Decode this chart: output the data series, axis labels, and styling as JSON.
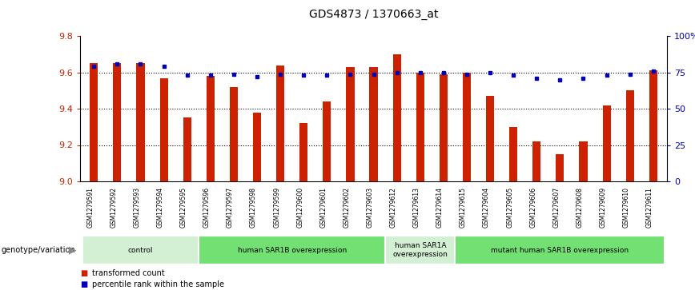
{
  "title": "GDS4873 / 1370663_at",
  "samples": [
    "GSM1279591",
    "GSM1279592",
    "GSM1279593",
    "GSM1279594",
    "GSM1279595",
    "GSM1279596",
    "GSM1279597",
    "GSM1279598",
    "GSM1279599",
    "GSM1279600",
    "GSM1279601",
    "GSM1279602",
    "GSM1279603",
    "GSM1279612",
    "GSM1279613",
    "GSM1279614",
    "GSM1279615",
    "GSM1279604",
    "GSM1279605",
    "GSM1279606",
    "GSM1279607",
    "GSM1279608",
    "GSM1279609",
    "GSM1279610",
    "GSM1279611"
  ],
  "red_values": [
    9.65,
    9.65,
    9.65,
    9.57,
    9.35,
    9.58,
    9.52,
    9.38,
    9.64,
    9.32,
    9.44,
    9.63,
    9.63,
    9.7,
    9.6,
    9.59,
    9.6,
    9.47,
    9.3,
    9.22,
    9.15,
    9.22,
    9.42,
    9.5,
    9.61
  ],
  "blue_values": [
    79,
    81,
    81,
    79,
    73,
    73,
    74,
    72,
    74,
    73,
    73,
    74,
    74,
    75,
    75,
    75,
    74,
    75,
    73,
    71,
    70,
    71,
    73,
    74,
    76
  ],
  "ylim_left": [
    9.0,
    9.8
  ],
  "ylim_right": [
    0,
    100
  ],
  "yticks_left": [
    9.0,
    9.2,
    9.4,
    9.6,
    9.8
  ],
  "yticks_right": [
    0,
    25,
    50,
    75,
    100
  ],
  "ytick_labels_right": [
    "0",
    "25",
    "50",
    "75",
    "100%"
  ],
  "groups": [
    {
      "label": "control",
      "start": 0,
      "end": 4,
      "color": "#d4f0d4"
    },
    {
      "label": "human SAR1B overexpression",
      "start": 5,
      "end": 12,
      "color": "#72e072"
    },
    {
      "label": "human SAR1A\noverexpression",
      "start": 13,
      "end": 15,
      "color": "#d4f0d4"
    },
    {
      "label": "mutant human SAR1B overexpression",
      "start": 16,
      "end": 24,
      "color": "#72e072"
    }
  ],
  "genotype_label": "genotype/variation",
  "legend_red": "transformed count",
  "legend_blue": "percentile rank within the sample",
  "bar_color": "#cc2200",
  "dot_color": "#0000bb",
  "background_color": "#ffffff",
  "tick_label_area_color": "#c8c8c8",
  "bar_width": 0.35
}
